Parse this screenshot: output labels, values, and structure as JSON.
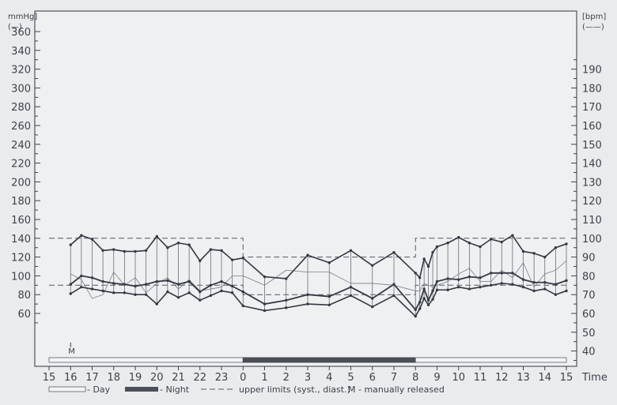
{
  "chart_data": {
    "type": "line",
    "left_axis": {
      "unit_label": "mmHg]",
      "unit_symbol": "(—)",
      "ticks": [
        60,
        80,
        100,
        120,
        140,
        160,
        180,
        200,
        220,
        240,
        260,
        280,
        300,
        320,
        340,
        360
      ],
      "range": [
        40,
        370
      ]
    },
    "right_axis": {
      "unit_label": "[bpm]",
      "unit_symbol": "(——)",
      "ticks": [
        40,
        50,
        60,
        70,
        80,
        90,
        100,
        110,
        120,
        130,
        140,
        150,
        160,
        170,
        180,
        190
      ],
      "range": [
        30,
        195
      ]
    },
    "x_axis": {
      "label": "Time",
      "ticks": [
        "15",
        "16",
        "17",
        "18",
        "19",
        "20",
        "21",
        "22",
        "23",
        "0",
        "1",
        "2",
        "3",
        "4",
        "5",
        "6",
        "7",
        "8",
        "9",
        "10",
        "11",
        "12",
        "13",
        "14",
        "15"
      ],
      "range_hours": [
        15,
        39
      ]
    },
    "day_night_bar": [
      {
        "start": 15,
        "end": 24,
        "period": "day"
      },
      {
        "start": 24,
        "end": 32,
        "period": "night"
      },
      {
        "start": 32,
        "end": 39,
        "period": "day"
      }
    ],
    "upper_limits": {
      "systolic": [
        {
          "start": 15,
          "end": 24,
          "value": 140
        },
        {
          "start": 24,
          "end": 32,
          "value": 120
        },
        {
          "start": 32,
          "end": 39,
          "value": 140
        }
      ],
      "diastolic": [
        {
          "start": 15,
          "end": 24,
          "value": 90
        },
        {
          "start": 24,
          "end": 32,
          "value": 80
        },
        {
          "start": 32,
          "end": 39,
          "value": 90
        }
      ]
    },
    "manual_marker": {
      "time": 16,
      "label": "M"
    },
    "series": [
      {
        "measure": "systolic",
        "x": [
          16,
          16.5,
          17,
          17.5,
          18,
          18.5,
          19,
          19.5,
          20,
          20.5,
          21,
          21.5,
          22,
          22.5,
          23,
          23.5,
          24,
          25,
          26,
          27,
          28,
          29,
          30,
          31,
          32,
          32.2,
          32.4,
          32.6,
          32.8,
          33,
          33.5,
          34,
          34.5,
          35,
          35.5,
          36,
          36.5,
          37,
          37.5,
          38,
          38.5,
          39
        ],
        "values": [
          133,
          143,
          139,
          127,
          128,
          126,
          126,
          127,
          142,
          130,
          135,
          133,
          116,
          128,
          127,
          117,
          119,
          99,
          97,
          122,
          114,
          127,
          111,
          125,
          103,
          98,
          118,
          110,
          125,
          131,
          135,
          141,
          135,
          131,
          139,
          136,
          143,
          126,
          124,
          120,
          130,
          134
        ]
      },
      {
        "measure": "diastolic",
        "x": [
          16,
          16.5,
          17,
          17.5,
          18,
          18.5,
          19,
          19.5,
          20,
          20.5,
          21,
          21.5,
          22,
          22.5,
          23,
          23.5,
          24,
          25,
          26,
          27,
          28,
          29,
          30,
          31,
          32,
          32.2,
          32.4,
          32.6,
          32.8,
          33,
          33.5,
          34,
          34.5,
          35,
          35.5,
          36,
          36.5,
          37,
          37.5,
          38,
          38.5,
          39
        ],
        "values": [
          81,
          88,
          86,
          84,
          82,
          82,
          80,
          80,
          70,
          83,
          77,
          82,
          74,
          79,
          84,
          82,
          68,
          63,
          66,
          70,
          69,
          79,
          67,
          79,
          57,
          65,
          76,
          69,
          75,
          85,
          85,
          88,
          86,
          88,
          90,
          92,
          91,
          88,
          84,
          86,
          80,
          84
        ]
      },
      {
        "measure": "mean",
        "x": [
          16,
          16.5,
          17,
          17.5,
          18,
          18.5,
          19,
          19.5,
          20,
          20.5,
          21,
          21.5,
          22,
          22.5,
          23,
          23.5,
          24,
          25,
          26,
          27,
          28,
          29,
          30,
          31,
          32,
          32.2,
          32.4,
          32.6,
          32.8,
          33,
          33.5,
          34,
          34.5,
          35,
          35.5,
          36,
          36.5,
          37,
          37.5,
          38,
          38.5,
          39
        ],
        "values": [
          91,
          100,
          98,
          94,
          92,
          91,
          89,
          91,
          94,
          95,
          91,
          94,
          83,
          90,
          94,
          89,
          83,
          70,
          74,
          80,
          78,
          88,
          76,
          91,
          64,
          72,
          86,
          74,
          84,
          94,
          97,
          96,
          99,
          98,
          103,
          103,
          103,
          96,
          93,
          93,
          91,
          95
        ]
      },
      {
        "measure": "heart_rate",
        "x": [
          16,
          16.5,
          17,
          17.5,
          18,
          18.5,
          19,
          19.5,
          20,
          20.5,
          21,
          21.5,
          22,
          22.5,
          23,
          23.5,
          24,
          25,
          26,
          27,
          28,
          29,
          30,
          31,
          32,
          32.2,
          32.4,
          32.6,
          32.8,
          33,
          33.5,
          34,
          34.5,
          35,
          35.5,
          36,
          36.5,
          37,
          37.5,
          38,
          38.5,
          39
        ],
        "values": [
          81,
          78,
          68,
          70,
          82,
          75,
          79,
          71,
          76,
          79,
          73,
          78,
          72,
          73,
          74,
          80,
          80,
          75,
          83,
          82,
          82,
          76,
          76,
          75,
          72,
          72,
          76,
          75,
          74,
          75,
          77,
          81,
          84,
          77,
          77,
          83,
          79,
          87,
          74,
          81,
          83,
          88
        ]
      }
    ],
    "legend": [
      {
        "type": "day",
        "label": "- Day"
      },
      {
        "type": "night",
        "label": "- Night"
      },
      {
        "type": "limit",
        "label": "upper limits (syst., diast.)"
      },
      {
        "type": "manual",
        "label": "M - manually released"
      }
    ]
  }
}
